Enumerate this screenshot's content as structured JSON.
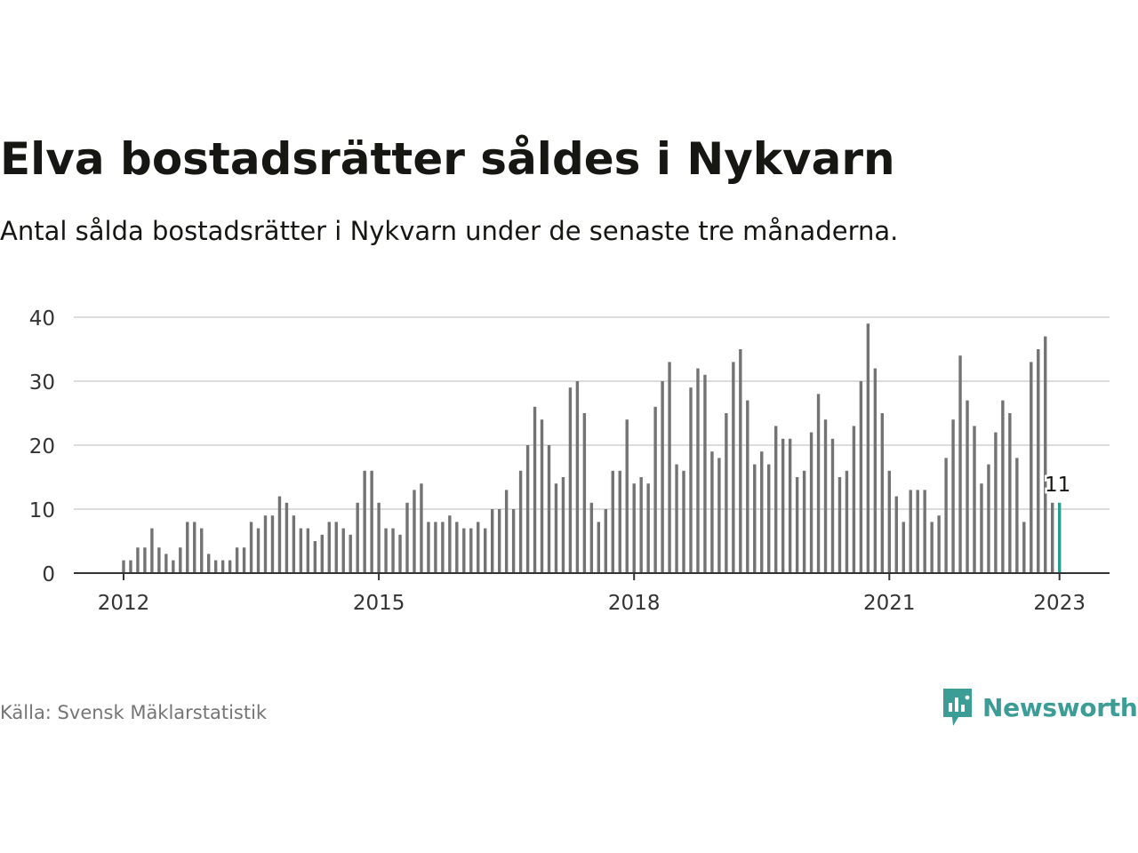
{
  "title": "Elva bostadsrätter såldes i Nykvarn",
  "subtitle": "Antal sålda bostadsrätter i Nykvarn under de senaste tre månaderna.",
  "source": "Källa: Svensk Mäklarstatistik",
  "brand": {
    "name": "Newsworthy",
    "icon": "newsworthy-logo-icon",
    "color": "#3c9d96"
  },
  "colors": {
    "bar": "#737373",
    "highlight": "#2a9d93",
    "grid": "#dcdcdc",
    "axis": "#333333",
    "text": "#161712",
    "muted": "#757575"
  },
  "chart_data": {
    "type": "bar",
    "title": "Elva bostadsrätter såldes i Nykvarn",
    "subtitle": "Antal sålda bostadsrätter i Nykvarn under de senaste tre månaderna.",
    "xlabel": "",
    "ylabel": "",
    "ylim": [
      0,
      40
    ],
    "yticks": [
      0,
      10,
      20,
      30,
      40
    ],
    "xticks": [
      "2012",
      "2015",
      "2018",
      "2021",
      "2023"
    ],
    "grid": true,
    "legend": "none",
    "x": [
      "2012-01",
      "2012-02",
      "2012-03",
      "2012-04",
      "2012-05",
      "2012-06",
      "2012-07",
      "2012-08",
      "2012-09",
      "2012-10",
      "2012-11",
      "2012-12",
      "2013-01",
      "2013-02",
      "2013-03",
      "2013-04",
      "2013-05",
      "2013-06",
      "2013-07",
      "2013-08",
      "2013-09",
      "2013-10",
      "2013-11",
      "2013-12",
      "2014-01",
      "2014-02",
      "2014-03",
      "2014-04",
      "2014-05",
      "2014-06",
      "2014-07",
      "2014-08",
      "2014-09",
      "2014-10",
      "2014-11",
      "2014-12",
      "2015-01",
      "2015-02",
      "2015-03",
      "2015-04",
      "2015-05",
      "2015-06",
      "2015-07",
      "2015-08",
      "2015-09",
      "2015-10",
      "2015-11",
      "2015-12",
      "2016-01",
      "2016-02",
      "2016-03",
      "2016-04",
      "2016-05",
      "2016-06",
      "2016-07",
      "2016-08",
      "2016-09",
      "2016-10",
      "2016-11",
      "2016-12",
      "2017-01",
      "2017-02",
      "2017-03",
      "2017-04",
      "2017-05",
      "2017-06",
      "2017-07",
      "2017-08",
      "2017-09",
      "2017-10",
      "2017-11",
      "2017-12",
      "2018-01",
      "2018-02",
      "2018-03",
      "2018-04",
      "2018-05",
      "2018-06",
      "2018-07",
      "2018-08",
      "2018-09",
      "2018-10",
      "2018-11",
      "2018-12",
      "2019-01",
      "2019-02",
      "2019-03",
      "2019-04",
      "2019-05",
      "2019-06",
      "2019-07",
      "2019-08",
      "2019-09",
      "2019-10",
      "2019-11",
      "2019-12",
      "2020-01",
      "2020-02",
      "2020-03",
      "2020-04",
      "2020-05",
      "2020-06",
      "2020-07",
      "2020-08",
      "2020-09",
      "2020-10",
      "2020-11",
      "2020-12",
      "2021-01",
      "2021-02",
      "2021-03",
      "2021-04",
      "2021-05",
      "2021-06",
      "2021-07",
      "2021-08",
      "2021-09",
      "2021-10",
      "2021-11",
      "2021-12",
      "2022-01",
      "2022-02",
      "2022-03",
      "2022-04",
      "2022-05",
      "2022-06",
      "2022-07",
      "2022-08",
      "2022-09",
      "2022-10",
      "2022-11",
      "2022-12",
      "2023-01"
    ],
    "values": [
      2,
      2,
      4,
      4,
      7,
      4,
      3,
      2,
      4,
      8,
      8,
      7,
      3,
      2,
      2,
      2,
      4,
      4,
      8,
      7,
      9,
      9,
      12,
      11,
      9,
      7,
      7,
      5,
      6,
      8,
      8,
      7,
      6,
      11,
      16,
      16,
      11,
      7,
      7,
      6,
      11,
      13,
      14,
      8,
      8,
      8,
      9,
      8,
      7,
      7,
      8,
      7,
      10,
      10,
      13,
      10,
      16,
      20,
      26,
      24,
      20,
      14,
      15,
      29,
      30,
      25,
      11,
      8,
      10,
      16,
      16,
      24,
      14,
      15,
      14,
      26,
      30,
      33,
      17,
      16,
      29,
      32,
      31,
      19,
      18,
      25,
      33,
      35,
      27,
      17,
      19,
      17,
      23,
      21,
      21,
      15,
      16,
      22,
      28,
      24,
      21,
      15,
      16,
      23,
      30,
      39,
      32,
      25,
      16,
      12,
      8,
      13,
      13,
      13,
      8,
      9,
      18,
      24,
      34,
      27,
      23,
      14,
      17,
      22,
      27,
      25,
      18,
      8,
      33,
      35,
      37,
      11,
      11
    ],
    "highlight_index": 132,
    "data_labels": [
      {
        "x": "2023-01",
        "value": 11,
        "text": "11"
      }
    ]
  }
}
